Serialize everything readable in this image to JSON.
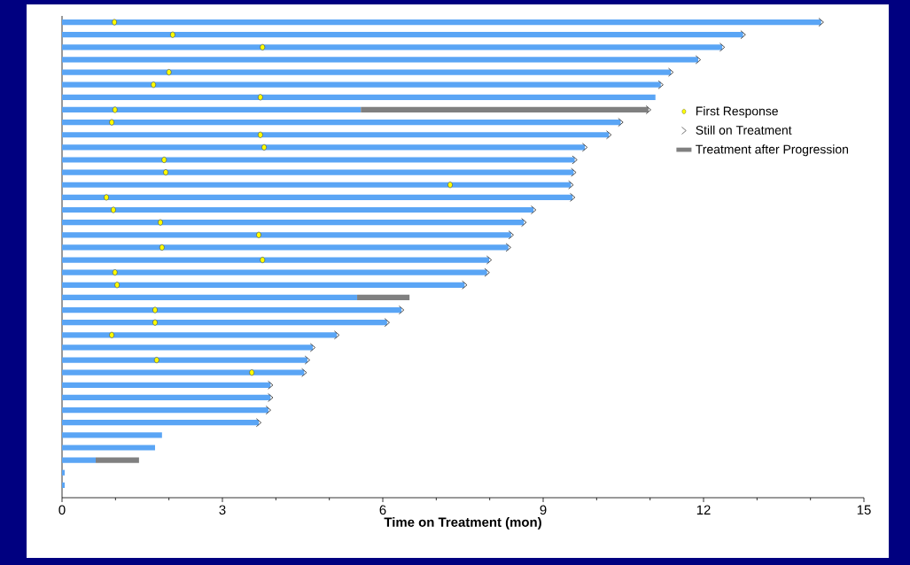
{
  "chart_data": {
    "type": "bar",
    "orientation": "horizontal",
    "stacked": true,
    "xlabel": "Time on Treatment (mon)",
    "categories": [
      null,
      null,
      null,
      null,
      null,
      null,
      null,
      null,
      null,
      null,
      null,
      null,
      null,
      null,
      null,
      null,
      null,
      null,
      null,
      null,
      null,
      null,
      null,
      null,
      null,
      null,
      null,
      null,
      null,
      null,
      null,
      null,
      null,
      null,
      null,
      null,
      null,
      null
    ],
    "xlim": [
      0,
      15
    ],
    "xticks": [
      0,
      {
        "value": 1,
        "label": null
      },
      {
        "value": 2,
        "label": null
      },
      3,
      {
        "value": 4,
        "label": null
      },
      {
        "value": 5,
        "label": null
      },
      6,
      {
        "value": 7,
        "label": null
      },
      {
        "value": 8,
        "label": null
      },
      9,
      {
        "value": 10,
        "label": null
      },
      {
        "value": 11,
        "label": null
      },
      12,
      {
        "value": 13,
        "label": null
      },
      {
        "value": 14,
        "label": null
      },
      15
    ],
    "legend": "right",
    "tick_labels": "x",
    "series": [
      {
        "color": "#5aa5f5",
        "values": [
          14.2,
          12.74,
          12.35,
          11.9,
          11.39,
          11.2,
          11.1,
          5.59,
          10.45,
          10.23,
          9.78,
          9.59,
          9.57,
          9.52,
          9.55,
          8.82,
          8.64,
          8.4,
          8.35,
          7.99,
          7.95,
          7.53,
          5.52,
          6.35,
          6.08,
          5.14,
          4.69,
          4.59,
          4.53,
          3.9,
          3.9,
          3.86,
          3.68,
          1.87,
          1.74,
          0.63,
          0.05,
          0.05
        ]
      },
      {
        "name": "First Response",
        "type": "scatter",
        "marker": "circle",
        "color": "#ffff00",
        "values": [
          0.98,
          2.07,
          3.75,
          null,
          2.0,
          1.71,
          3.71,
          0.99,
          0.93,
          3.71,
          3.78,
          1.91,
          1.94,
          7.26,
          0.83,
          0.96,
          1.84,
          3.68,
          1.87,
          3.75,
          0.99,
          1.03,
          null,
          1.74,
          1.74,
          0.93,
          null,
          1.77,
          3.55,
          null,
          null,
          null,
          null,
          null,
          null,
          null,
          null,
          null
        ]
      },
      {
        "name": "Still on Treatment",
        "type": "scatter",
        "marker": "cross",
        "color": "#505050",
        "values": [
          14.2,
          12.74,
          12.35,
          11.9,
          11.39,
          11.2,
          null,
          10.97,
          10.45,
          10.23,
          9.78,
          9.59,
          9.57,
          9.52,
          9.55,
          8.82,
          8.64,
          8.4,
          8.35,
          7.99,
          7.95,
          7.53,
          null,
          6.35,
          6.08,
          5.14,
          4.69,
          4.59,
          4.53,
          3.9,
          3.9,
          3.86,
          3.68,
          null,
          null,
          null,
          null,
          null
        ]
      },
      {
        "name": "Treatment after Progression",
        "color": "#808080",
        "values": [
          null,
          null,
          null,
          null,
          null,
          null,
          null,
          5.38,
          null,
          null,
          null,
          null,
          null,
          null,
          null,
          null,
          null,
          null,
          null,
          null,
          null,
          null,
          0.98,
          null,
          null,
          null,
          null,
          null,
          null,
          null,
          null,
          null,
          null,
          null,
          null,
          0.81,
          null,
          null
        ]
      }
    ]
  }
}
